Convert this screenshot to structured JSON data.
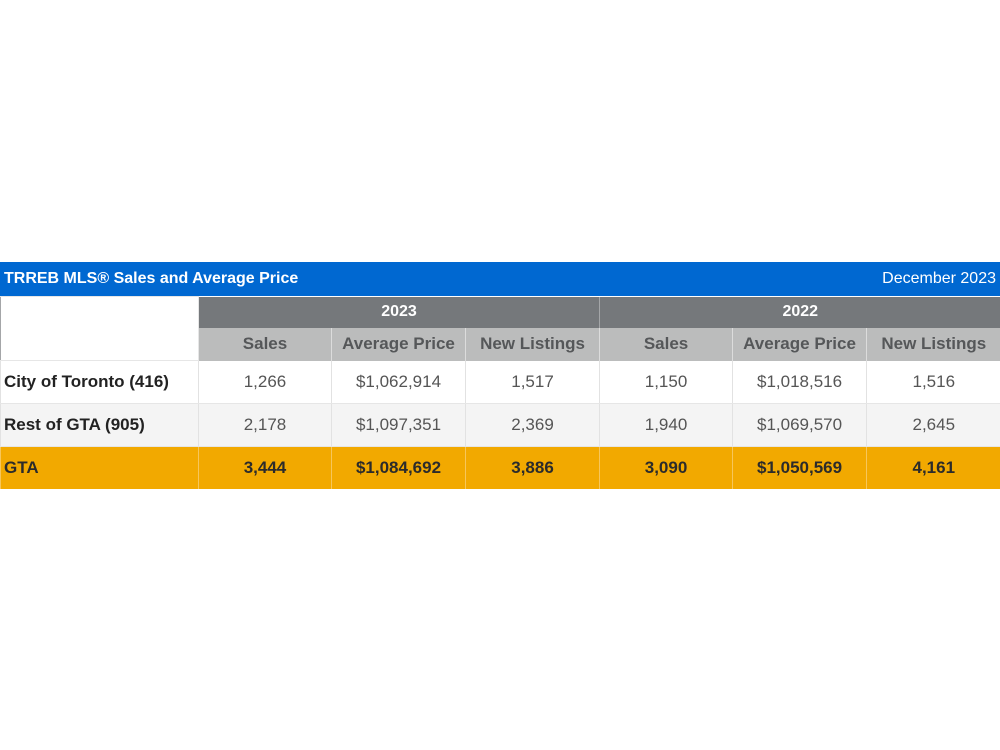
{
  "title_bar": {
    "title": "TRREB MLS® Sales and Average Price",
    "period": "December 2023",
    "color": "#0068d1"
  },
  "table": {
    "year_headers": [
      "2023",
      "2022"
    ],
    "column_headers": [
      "Sales",
      "Average Price",
      "New Listings",
      "Sales",
      "Average Price",
      "New Listings"
    ],
    "rows": [
      {
        "label": "City of Toronto (416)",
        "values": [
          "1,266",
          "$1,062,914",
          "1,517",
          "1,150",
          "$1,018,516",
          "1,516"
        ]
      },
      {
        "label": "Rest of GTA (905)",
        "values": [
          "2,178",
          "$1,097,351",
          "2,369",
          "1,940",
          "$1,069,570",
          "2,645"
        ]
      },
      {
        "label": "GTA",
        "values": [
          "3,444",
          "$1,084,692",
          "3,886",
          "3,090",
          "$1,050,569",
          "4,161"
        ],
        "highlight_color": "#f2a900"
      }
    ]
  }
}
